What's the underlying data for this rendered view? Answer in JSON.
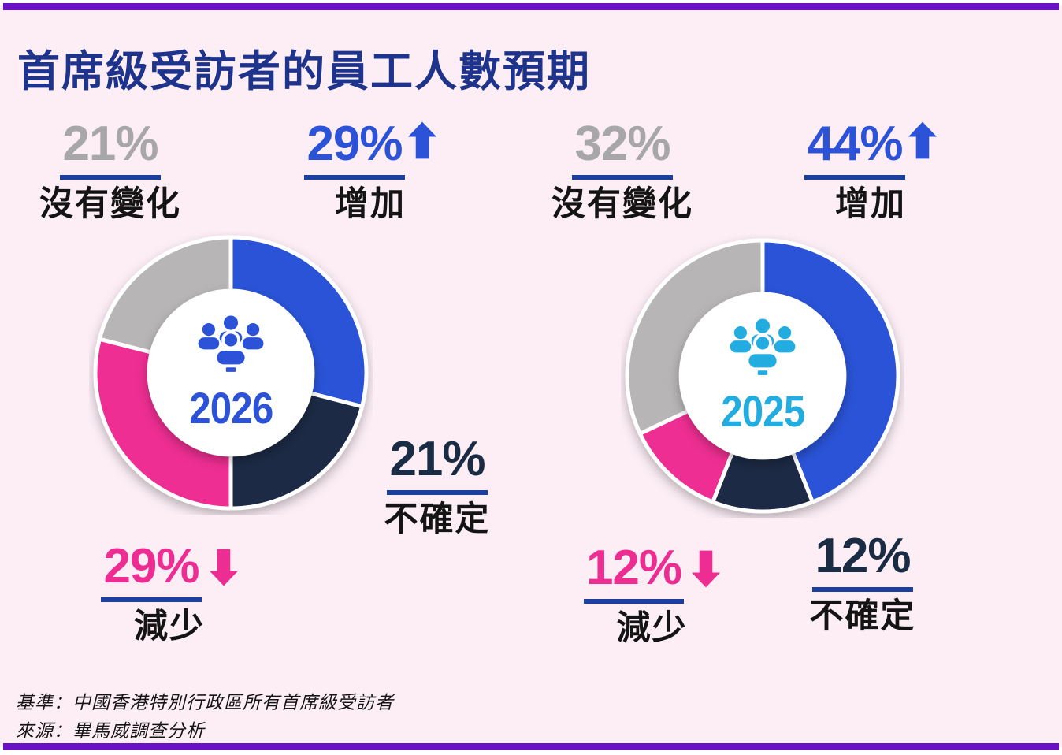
{
  "page": {
    "title": "首席級受訪者的員工人數預期",
    "footnotes": {
      "base": "基準：中國香港特別行政區所有首席級受訪者",
      "source": "來源：畢馬威調查分析"
    },
    "colors": {
      "background": "#fdeef6",
      "accent_bar": "#6a11c8",
      "title": "#1e338c",
      "underline": "#1b3f9e",
      "footnote": "#141414"
    }
  },
  "chart_data": [
    {
      "type": "pie",
      "variant": "donut",
      "title": "2026",
      "center_icon": "people-group-icon",
      "center_color": "#2b52d7",
      "slices": [
        {
          "label": "增加",
          "pct": "29%",
          "value": 29,
          "color": "#2b52d7",
          "pct_color": "#2b52d7",
          "arrow": "up"
        },
        {
          "label": "不確定",
          "pct": "21%",
          "value": 21,
          "color": "#1a2b44",
          "pct_color": "#1a2b44",
          "arrow": null
        },
        {
          "label": "減少",
          "pct": "29%",
          "value": 29,
          "color": "#ee2d92",
          "pct_color": "#ee2d92",
          "arrow": "down"
        },
        {
          "label": "沒有變化",
          "pct": "21%",
          "value": 21,
          "color": "#b7b5b6",
          "pct_color": "#a7a6a8",
          "arrow": null
        }
      ]
    },
    {
      "type": "pie",
      "variant": "donut",
      "title": "2025",
      "center_icon": "people-group-icon",
      "center_color": "#23ace0",
      "slices": [
        {
          "label": "增加",
          "pct": "44%",
          "value": 44,
          "color": "#2b52d7",
          "pct_color": "#2b52d7",
          "arrow": "up"
        },
        {
          "label": "不確定",
          "pct": "12%",
          "value": 12,
          "color": "#1a2b44",
          "pct_color": "#1a2b44",
          "arrow": null
        },
        {
          "label": "減少",
          "pct": "12%",
          "value": 12,
          "color": "#ee2d92",
          "pct_color": "#ee2d92",
          "arrow": "down"
        },
        {
          "label": "沒有變化",
          "pct": "32%",
          "value": 32,
          "color": "#b7b5b6",
          "pct_color": "#a7a6a8",
          "arrow": null
        }
      ]
    }
  ]
}
